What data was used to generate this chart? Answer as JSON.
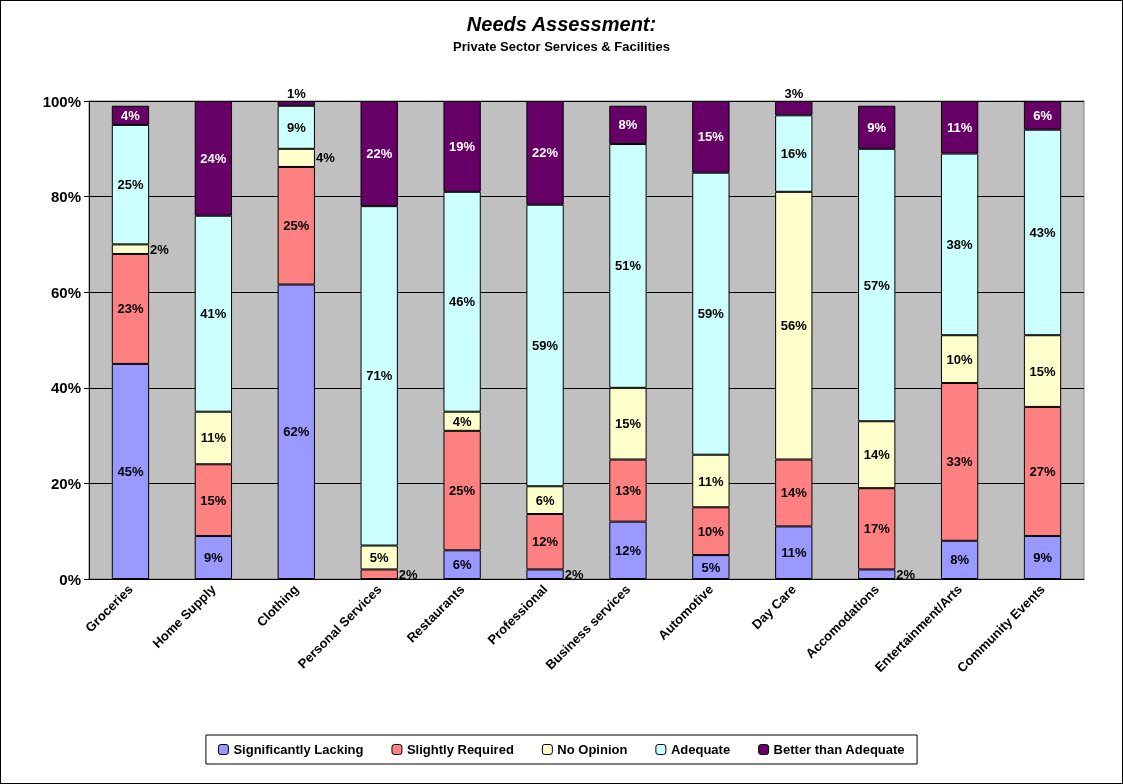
{
  "chart_data": {
    "type": "bar",
    "stacked": true,
    "title": "Needs Assessment:",
    "subtitle": "Private Sector Services & Facilities",
    "categories": [
      "Groceries",
      "Home Supply",
      "Clothing",
      "Personal Services",
      "Restaurants",
      "Professional",
      "Business services",
      "Automotive",
      "Day Care",
      "Accomodations",
      "Entertainment/Arts",
      "Community Events"
    ],
    "series": [
      {
        "name": "Significantly Lacking",
        "color": "#9999ff",
        "values": [
          45,
          9,
          61.6,
          0,
          6,
          2,
          12,
          5,
          11,
          2,
          8,
          9
        ],
        "value_labels": [
          "45%",
          "9%",
          "62%",
          null,
          "6%",
          "2%",
          "12%",
          "5%",
          "11%",
          "2%",
          "8%",
          "9%"
        ]
      },
      {
        "name": "Slightly Required",
        "color": "#ff8080",
        "values": [
          23,
          15,
          24.6,
          2,
          25,
          11.6,
          13,
          10,
          14,
          17,
          33,
          27
        ],
        "value_labels": [
          "23%",
          "15%",
          "25%",
          "2%",
          "25%",
          "12%",
          "13%",
          "10%",
          "14%",
          "17%",
          "33%",
          "27%"
        ]
      },
      {
        "name": "No Opinion",
        "color": "#ffffcc",
        "values": [
          2,
          11,
          3.8,
          5,
          4,
          5.8,
          15,
          11,
          56,
          14,
          10,
          15
        ],
        "value_labels": [
          "2%",
          "11%",
          "4%",
          "5%",
          "4%",
          "6%",
          "15%",
          "11%",
          "56%",
          "14%",
          "10%",
          "15%"
        ]
      },
      {
        "name": "Adequate",
        "color": "#ccffff",
        "values": [
          25,
          41,
          9,
          71,
          46,
          58.9,
          51,
          59,
          16,
          57,
          38,
          43
        ],
        "value_labels": [
          "25%",
          "41%",
          "9%",
          "71%",
          "46%",
          "59%",
          "51%",
          "59%",
          "16%",
          "57%",
          "38%",
          "43%"
        ]
      },
      {
        "name": "Better than Adequate",
        "color": "#660066",
        "values": [
          4,
          24,
          1,
          22,
          19,
          21.7,
          8,
          15,
          3,
          9,
          11,
          6
        ],
        "value_labels": [
          "4%",
          "24%",
          "1%",
          "22%",
          "19%",
          "22%",
          "8%",
          "15%",
          "3%",
          "9%",
          "11%",
          "6%"
        ]
      }
    ],
    "ylim": [
      0,
      100
    ],
    "yticks": [
      {
        "value": 0,
        "label": "0%"
      },
      {
        "value": 20,
        "label": "20%"
      },
      {
        "value": 40,
        "label": "40%"
      },
      {
        "value": 60,
        "label": "60%"
      },
      {
        "value": 80,
        "label": "80%"
      },
      {
        "value": 100,
        "label": "100%"
      }
    ],
    "grid": "y",
    "legend": "bottom"
  }
}
